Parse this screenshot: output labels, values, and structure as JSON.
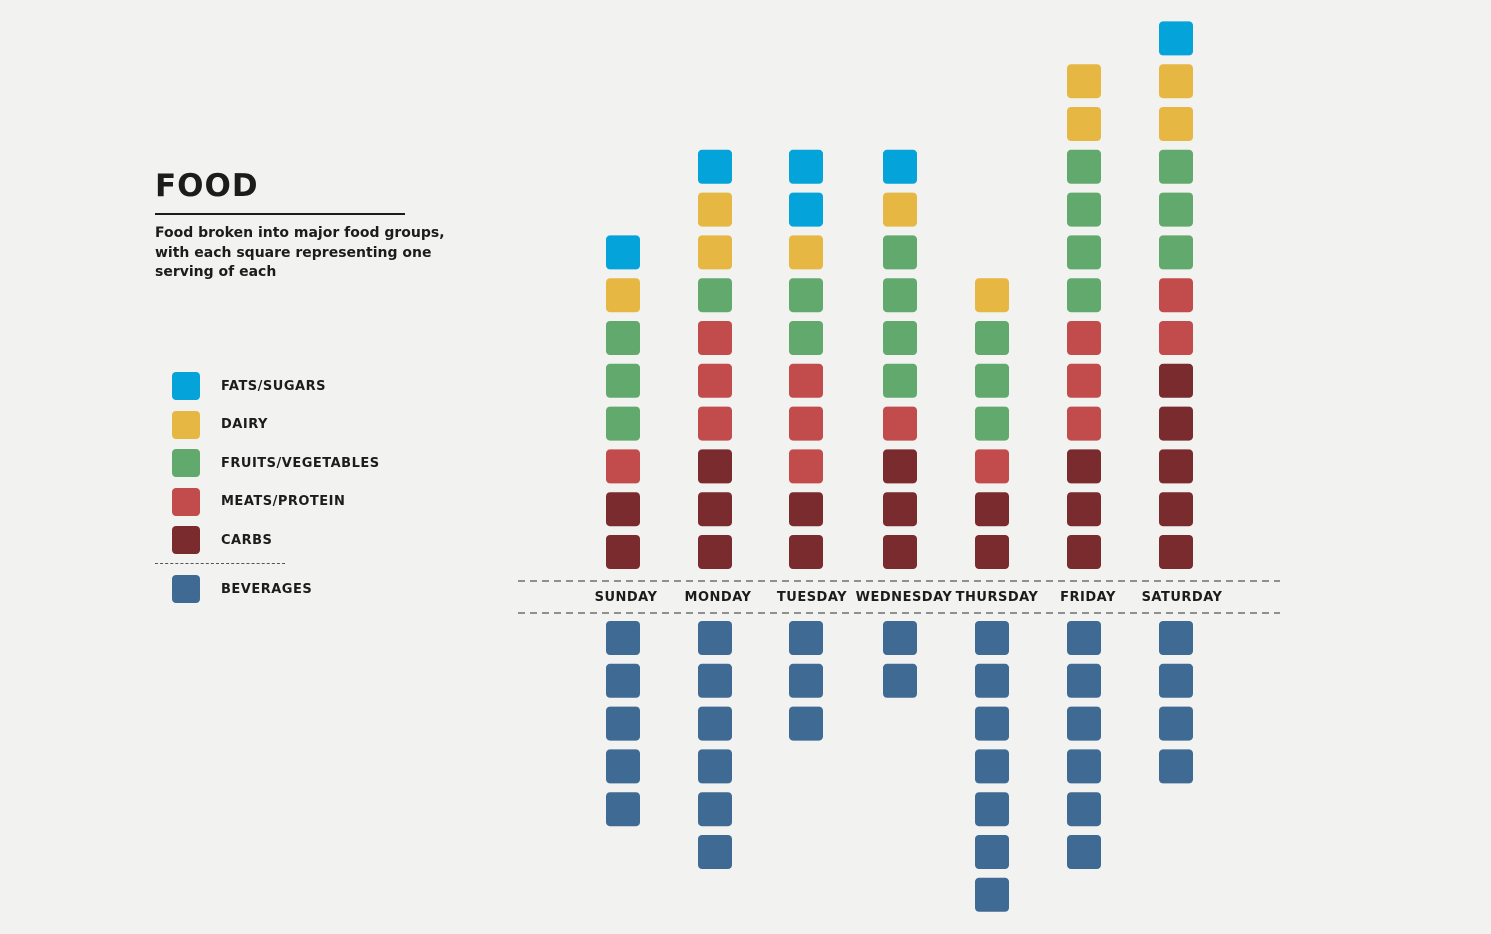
{
  "title": "FOOD",
  "subtitle": "Food broken into major food groups, with each square representing one serving of each",
  "legend": [
    {
      "key": "fats",
      "label": "FATS/SUGARS",
      "color": "#04a3d9"
    },
    {
      "key": "dairy",
      "label": "DAIRY",
      "color": "#e6b843"
    },
    {
      "key": "fruitsveg",
      "label": "FRUITS/VEGETABLES",
      "color": "#62a96d"
    },
    {
      "key": "meats",
      "label": "MEATS/PROTEIN",
      "color": "#c24b4b"
    },
    {
      "key": "carbs",
      "label": "CARBS",
      "color": "#7a2b2d"
    }
  ],
  "beverages": {
    "key": "beverages",
    "label": "BEVERAGES",
    "color": "#3f6a93"
  },
  "chart_data": {
    "type": "stacked-unit-bar",
    "unit": "one serving per square",
    "categories": [
      "SUNDAY",
      "MONDAY",
      "TUESDAY",
      "WEDNESDAY",
      "THURSDAY",
      "FRIDAY",
      "SATURDAY"
    ],
    "series": [
      {
        "name": "CARBS",
        "key": "carbs",
        "values": [
          2,
          3,
          2,
          3,
          2,
          3,
          5
        ]
      },
      {
        "name": "MEATS/PROTEIN",
        "key": "meats",
        "values": [
          1,
          3,
          3,
          1,
          1,
          3,
          2
        ]
      },
      {
        "name": "FRUITS/VEGETABLES",
        "key": "fruitsveg",
        "values": [
          3,
          1,
          2,
          4,
          3,
          4,
          3
        ]
      },
      {
        "name": "DAIRY",
        "key": "dairy",
        "values": [
          1,
          2,
          1,
          1,
          1,
          2,
          2
        ]
      },
      {
        "name": "FATS/SUGARS",
        "key": "fats",
        "values": [
          1,
          1,
          2,
          1,
          0,
          0,
          1
        ]
      }
    ],
    "beverages": {
      "name": "BEVERAGES",
      "key": "beverages",
      "values": [
        5,
        6,
        3,
        2,
        7,
        6,
        4
      ]
    }
  }
}
